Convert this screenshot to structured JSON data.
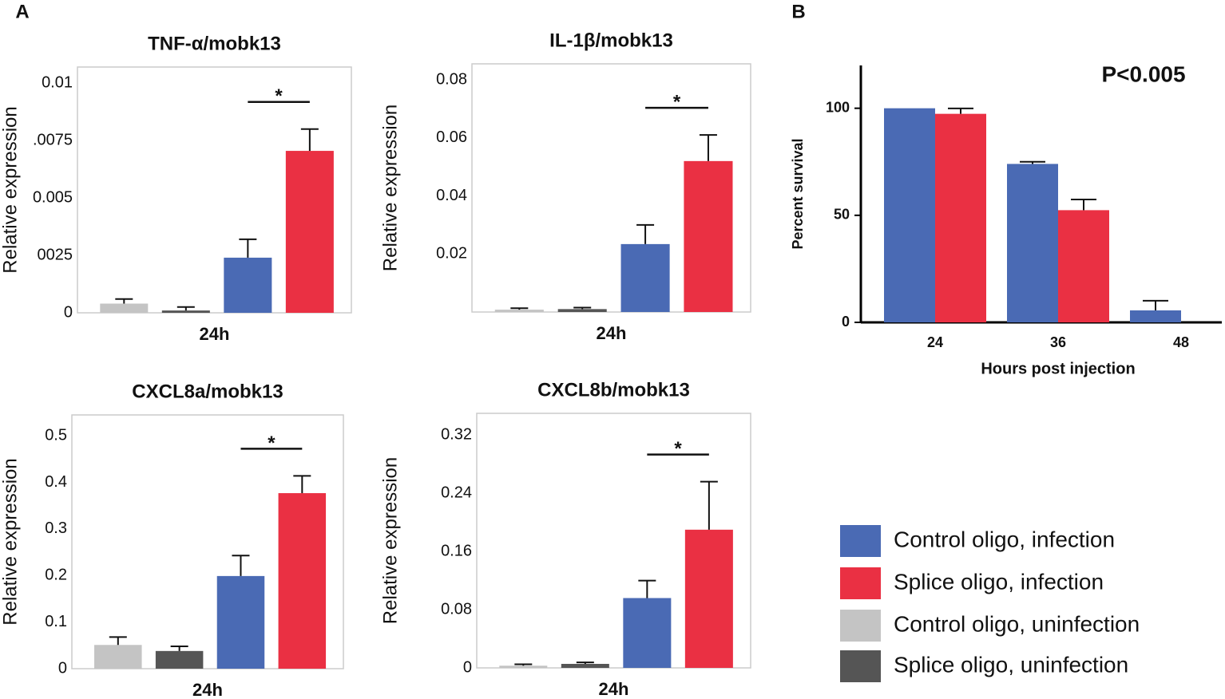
{
  "panel_labels": [
    "A",
    "B"
  ],
  "legend": [
    {
      "name": "Control oligo, infection",
      "color": "#4a6ab4"
    },
    {
      "name": "Splice oligo, infection",
      "color": "#ea3043"
    },
    {
      "name": "Control oligo, uninfection",
      "color": "#c4c4c4"
    },
    {
      "name": "Splice oligo, uninfection",
      "color": "#555555"
    }
  ],
  "chart_data": [
    {
      "type": "bar",
      "title": "TNF-α/mobk13",
      "ylabel": "Relative expression",
      "categories": [
        "24h"
      ],
      "series": [
        {
          "color": "#c4c4c4",
          "values": [
            0.0004
          ],
          "errors": [
            0.0002
          ]
        },
        {
          "color": "#555555",
          "values": [
            0.0001
          ],
          "errors": [
            0.00015
          ]
        },
        {
          "color": "#4a6ab4",
          "values": [
            0.0024
          ],
          "errors": [
            0.0008
          ]
        },
        {
          "color": "#ea3043",
          "values": [
            0.00705
          ],
          "errors": [
            0.00095
          ]
        }
      ],
      "ylim": [
        0,
        0.0107
      ],
      "yticks": [
        0,
        {
          "value": 0.0025,
          "label": "0025"
        },
        0.005,
        {
          "value": 0.0075,
          "label": ".0075"
        },
        0.01
      ],
      "annotation": "*"
    },
    {
      "type": "bar",
      "title": "IL-1β/mobk13",
      "ylabel": "Relative expression",
      "categories": [
        "24h"
      ],
      "series": [
        {
          "color": "#c4c4c4",
          "values": [
            0.0008
          ],
          "errors": [
            0.0005
          ]
        },
        {
          "color": "#555555",
          "values": [
            0.001
          ],
          "errors": [
            0.0005
          ]
        },
        {
          "color": "#4a6ab4",
          "values": [
            0.0234
          ],
          "errors": [
            0.0066
          ]
        },
        {
          "color": "#ea3043",
          "values": [
            0.052
          ],
          "errors": [
            0.009
          ]
        }
      ],
      "ylim": [
        0,
        0.0855
      ],
      "yticks": [
        0.02,
        0.04,
        0.06,
        0.08
      ],
      "annotation": "*"
    },
    {
      "type": "bar",
      "title": "CXCL8a/mobk13",
      "ylabel": "Relative expression",
      "categories": [
        "24h"
      ],
      "series": [
        {
          "color": "#c4c4c4",
          "values": [
            0.051
          ],
          "errors": [
            0.017
          ]
        },
        {
          "color": "#555555",
          "values": [
            0.038
          ],
          "errors": [
            0.01
          ]
        },
        {
          "color": "#4a6ab4",
          "values": [
            0.199
          ],
          "errors": [
            0.044
          ]
        },
        {
          "color": "#ea3043",
          "values": [
            0.377
          ],
          "errors": [
            0.037
          ]
        }
      ],
      "ylim": [
        0,
        0.545
      ],
      "yticks": [
        0,
        0.1,
        0.2,
        0.3,
        0.4,
        0.5
      ],
      "annotation": "*"
    },
    {
      "type": "bar",
      "title": "CXCL8b/mobk13",
      "ylabel": "Relative expression",
      "categories": [
        "24h"
      ],
      "series": [
        {
          "color": "#c4c4c4",
          "values": [
            0.003
          ],
          "errors": [
            0.002
          ]
        },
        {
          "color": "#555555",
          "values": [
            0.0055
          ],
          "errors": [
            0.002
          ]
        },
        {
          "color": "#4a6ab4",
          "values": [
            0.096
          ],
          "errors": [
            0.024
          ]
        },
        {
          "color": "#ea3043",
          "values": [
            0.19
          ],
          "errors": [
            0.066
          ]
        }
      ],
      "ylim": [
        0,
        0.35
      ],
      "yticks": [
        0,
        0.08,
        0.16,
        0.24,
        0.32
      ],
      "annotation": "*"
    },
    {
      "type": "bar",
      "ylabel": "Percent survival",
      "xlabel": "Hours post injection",
      "categories": [
        "24",
        "36",
        "48"
      ],
      "series": [
        {
          "color": "#4a6ab4",
          "values": [
            100,
            74,
            5.6
          ],
          "errors": [
            null,
            1,
            4.5
          ]
        },
        {
          "color": "#ea3043",
          "values": [
            97.4,
            52.4,
            null
          ],
          "errors": [
            2.5,
            5,
            null
          ]
        }
      ],
      "ylim": [
        0,
        120
      ],
      "yticks": [
        0,
        50,
        100
      ],
      "annotation": "P<0.005"
    }
  ]
}
